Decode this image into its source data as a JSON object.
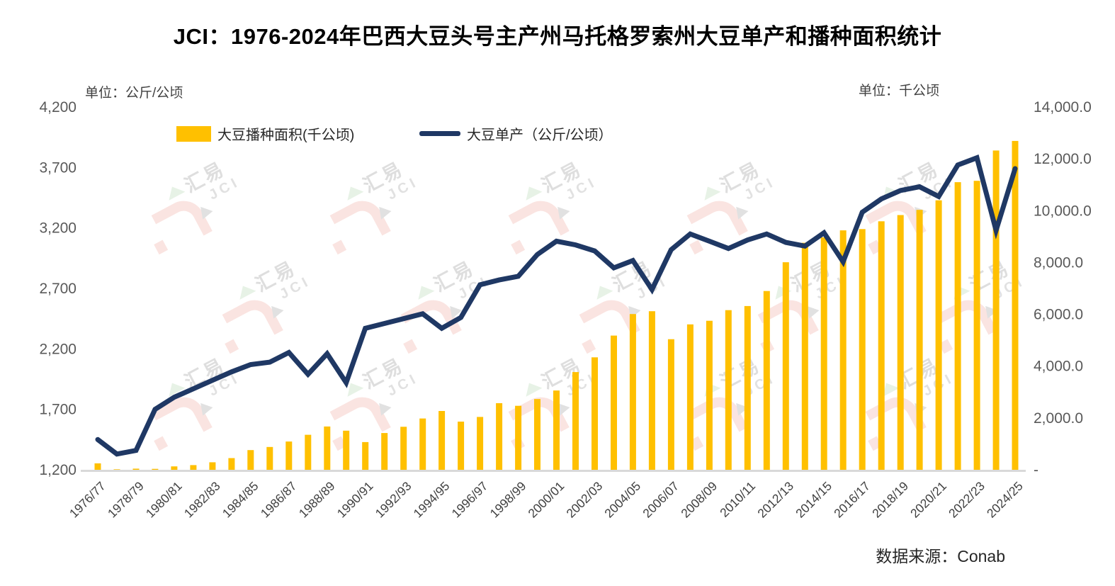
{
  "title": "JCI：1976-2024年巴西大豆头号主产州马托格罗索州大豆单产和播种面积统计",
  "left_axis_unit": "单位：公斤/公顷",
  "right_axis_unit": "单位：千公顷",
  "source": "数据来源：Conab",
  "watermark": {
    "cn": "汇易",
    "en": "JCI"
  },
  "colors": {
    "bar": "#FFC000",
    "line": "#1F3864",
    "left_tick_text": "#595959",
    "right_tick_text": "#595959",
    "x_tick_text": "#404040",
    "axis_line": "#D9D9D9"
  },
  "chart_data": {
    "type": "combo",
    "title": "JCI：1976-2024年巴西大豆头号主产州马托格罗索州大豆单产和播种面积统计",
    "legend_position": "top",
    "grid": false,
    "categories": [
      "1976/77",
      "1977/78",
      "1978/79",
      "1979/80",
      "1980/81",
      "1981/82",
      "1982/83",
      "1983/84",
      "1984/85",
      "1985/86",
      "1986/87",
      "1987/88",
      "1988/89",
      "1989/90",
      "1990/91",
      "1991/92",
      "1992/93",
      "1993/94",
      "1994/95",
      "1995/96",
      "1996/97",
      "1997/98",
      "1998/99",
      "1999/00",
      "2000/01",
      "2001/02",
      "2002/03",
      "2003/04",
      "2004/05",
      "2005/06",
      "2006/07",
      "2007/08",
      "2008/09",
      "2009/10",
      "2010/11",
      "2011/12",
      "2012/13",
      "2013/14",
      "2014/15",
      "2015/16",
      "2016/17",
      "2017/18",
      "2018/19",
      "2019/20",
      "2020/21",
      "2021/22",
      "2022/23",
      "2023/24",
      "2024/25"
    ],
    "x_tick_labels": [
      "1976/77",
      "1978/79",
      "1980/81",
      "1982/83",
      "1984/85",
      "1986/87",
      "1988/89",
      "1990/91",
      "1992/93",
      "1994/95",
      "1996/97",
      "1998/99",
      "2000/01",
      "2002/03",
      "2004/05",
      "2006/07",
      "2008/09",
      "2010/11",
      "2012/13",
      "2014/15",
      "2016/17",
      "2018/19",
      "2020/21",
      "2022/23",
      "2024/25"
    ],
    "series": [
      {
        "name": "大豆播种面积(千公顷)",
        "type": "bar",
        "axis": "right",
        "unit": "千公顷",
        "color": "#FFC000",
        "values": [
          250,
          20,
          45,
          35,
          130,
          180,
          290,
          450,
          760,
          880,
          1090,
          1350,
          1670,
          1510,
          1070,
          1420,
          1660,
          1980,
          2270,
          1860,
          2040,
          2570,
          2470,
          2730,
          3060,
          3770,
          4340,
          5180,
          6010,
          6120,
          5040,
          5610,
          5750,
          6160,
          6320,
          6900,
          8010,
          8760,
          8970,
          9240,
          9290,
          9590,
          9830,
          10030,
          10400,
          11100,
          11150,
          12320,
          12690
        ]
      },
      {
        "name": "大豆单产（公斤/公顷）",
        "type": "line",
        "axis": "left",
        "unit": "公斤/公顷",
        "color": "#1F3864",
        "values": [
          1450,
          1330,
          1360,
          1700,
          1800,
          1870,
          1940,
          2010,
          2070,
          2090,
          2170,
          1990,
          2160,
          1920,
          2370,
          2410,
          2450,
          2490,
          2370,
          2460,
          2730,
          2770,
          2800,
          2980,
          3090,
          3060,
          3010,
          2870,
          2930,
          2690,
          3020,
          3150,
          3090,
          3030,
          3100,
          3150,
          3080,
          3050,
          3160,
          2920,
          3330,
          3440,
          3510,
          3540,
          3460,
          3720,
          3780,
          3180,
          3690
        ]
      }
    ],
    "left_axis": {
      "min": 1200,
      "max": 4200,
      "step": 500,
      "ticks": [
        "4,200",
        "3,700",
        "3,200",
        "2,700",
        "2,200",
        "1,700",
        "1,200"
      ]
    },
    "right_axis": {
      "min": 0,
      "max": 14000,
      "step": 2000,
      "ticks": [
        "14,000.0",
        "12,000.0",
        "10,000.0",
        "8,000.0",
        "6,000.0",
        "4,000.0",
        "2,000.0",
        "-"
      ]
    }
  }
}
